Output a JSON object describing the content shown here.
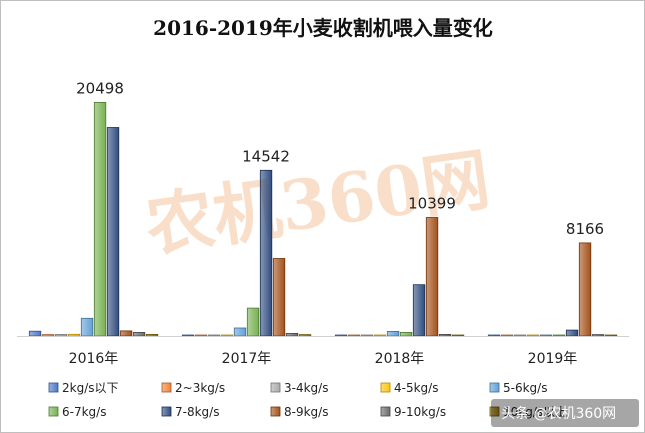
{
  "chart_data": {
    "type": "bar",
    "title": "2016-2019年小麦收割机喂入量变化",
    "categories": [
      "2016年",
      "2017年",
      "2018年",
      "2019年"
    ],
    "ylim": [
      0,
      21500
    ],
    "grid": false,
    "legend_position": "bottom",
    "series": [
      {
        "name": "2kg/s以下",
        "color": "#4472c4",
        "values": [
          420,
          70,
          40,
          30
        ]
      },
      {
        "name": "2~3kg/s",
        "color": "#ed7d31",
        "values": [
          120,
          60,
          30,
          20
        ]
      },
      {
        "name": "3-4kg/s",
        "color": "#a5a5a5",
        "values": [
          130,
          60,
          30,
          20
        ]
      },
      {
        "name": "4-5kg/s",
        "color": "#ffc000",
        "values": [
          150,
          70,
          40,
          20
        ]
      },
      {
        "name": "5-6kg/s",
        "color": "#5b9bd5",
        "values": [
          1550,
          700,
          400,
          60
        ]
      },
      {
        "name": "6-7kg/s",
        "color": "#70ad47",
        "values": [
          20498,
          2450,
          320,
          90
        ]
      },
      {
        "name": "7-8kg/s",
        "color": "#264478",
        "values": [
          18300,
          14542,
          4500,
          520
        ]
      },
      {
        "name": "8-9kg/s",
        "color": "#9e480e",
        "values": [
          450,
          6800,
          10399,
          8166
        ]
      },
      {
        "name": "9-10kg/s",
        "color": "#636363",
        "values": [
          320,
          230,
          140,
          120
        ]
      },
      {
        "name": "10kg/s以上",
        "color": "#997300",
        "values": [
          140,
          120,
          70,
          80
        ]
      }
    ],
    "data_labels": [
      {
        "category": "2016年",
        "series": "6-7kg/s",
        "text": "20498"
      },
      {
        "category": "2017年",
        "series": "7-8kg/s",
        "text": "14542"
      },
      {
        "category": "2018年",
        "series": "8-9kg/s",
        "text": "10399"
      },
      {
        "category": "2019年",
        "series": "8-9kg/s",
        "text": "8166"
      }
    ]
  },
  "watermark": "农机360网",
  "credit": "头条 @农机360网"
}
